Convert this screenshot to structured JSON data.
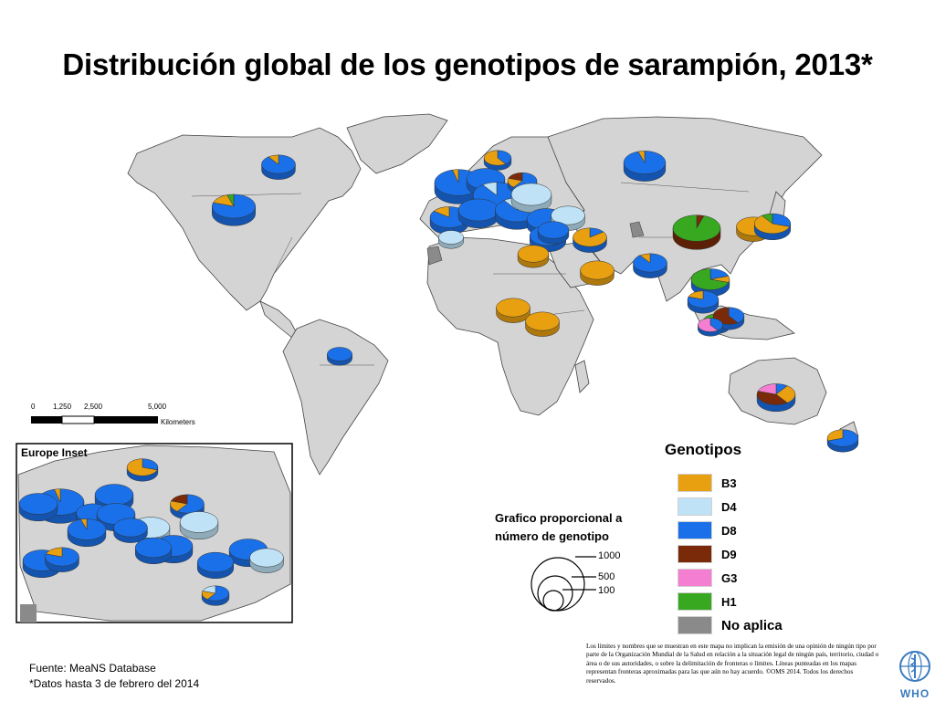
{
  "title": "Distribución global de los genotipos de sarampión, 2013*",
  "colors": {
    "B3": "#e8a010",
    "D4": "#bfe2f7",
    "D8": "#1a70e8",
    "D9": "#7a2a08",
    "G3": "#f47fd2",
    "H1": "#38a820",
    "NA": "#8a8a8a",
    "land": "#d4d4d4",
    "border": "#444444"
  },
  "legend": {
    "title": "Genotipos",
    "items": [
      {
        "key": "B3",
        "label": "B3"
      },
      {
        "key": "D4",
        "label": "D4"
      },
      {
        "key": "D8",
        "label": "D8"
      },
      {
        "key": "D9",
        "label": "D9"
      },
      {
        "key": "G3",
        "label": "G3"
      },
      {
        "key": "H1",
        "label": "H1"
      },
      {
        "key": "NA",
        "label": "No aplica"
      }
    ]
  },
  "proportional": {
    "title": "Grafico proporcional a número de genotipo",
    "values": [
      "1000",
      "500",
      "100"
    ]
  },
  "scale_bar": {
    "labels": [
      "0",
      "1,250",
      "2,500",
      "5,000"
    ],
    "unit": "Kilometers"
  },
  "inset": {
    "label": "Europe Inset"
  },
  "footer": {
    "source": "Fuente: MeaNS Database",
    "note": "*Datos hasta 3 de febrero del 2014"
  },
  "disclaimer": "Los límites y nombres que se muestran en este mapa no implican la emisión de una opinión de ningún tipo por parte de la Organización Mundial de la Salud en relación a la situación legal de ningún país, territorio, ciudad o área o de sus autoridades, o sobre la delimitación de fronteras o límites. Líneas punteadas en los mapas representan fronteras aproximadas para las que aún no hay acuerdo. ©OMS 2014. Todos los derechos reservados.",
  "logo": {
    "text": "WHO"
  },
  "pie_charts": [
    {
      "name": "canada",
      "total": 40,
      "shares": {
        "D8": 0.9,
        "B3": 0.1
      }
    },
    {
      "name": "usa",
      "total": 90,
      "shares": {
        "D8": 0.8,
        "B3": 0.15,
        "H1": 0.05
      }
    },
    {
      "name": "brazil",
      "total": 15,
      "shares": {
        "D8": 1.0
      }
    },
    {
      "name": "united-kingdom",
      "total": 900,
      "shares": {
        "D8": 0.96,
        "B3": 0.04
      }
    },
    {
      "name": "norway",
      "total": 20,
      "shares": {
        "B3": 0.6,
        "D8": 0.4
      }
    },
    {
      "name": "netherlands",
      "total": 60,
      "shares": {
        "D8": 1.0
      }
    },
    {
      "name": "germany",
      "total": 120,
      "shares": {
        "D8": 0.9,
        "D4": 0.1
      }
    },
    {
      "name": "poland",
      "total": 25,
      "shares": {
        "D8": 0.6,
        "D9": 0.2,
        "B3": 0.2
      }
    },
    {
      "name": "spain",
      "total": 60,
      "shares": {
        "D8": 0.85,
        "B3": 0.15
      }
    },
    {
      "name": "portugal-morocco",
      "total": 15,
      "shares": {
        "D4": 1.0
      }
    },
    {
      "name": "france",
      "total": 70,
      "shares": {
        "D8": 1.0
      }
    },
    {
      "name": "italy",
      "total": 90,
      "shares": {
        "D8": 0.9,
        "D4": 0.1
      }
    },
    {
      "name": "romania",
      "total": 70,
      "shares": {
        "D4": 1.0
      }
    },
    {
      "name": "turkey",
      "total": 60,
      "shares": {
        "D8": 1.0
      }
    },
    {
      "name": "georgia",
      "total": 40,
      "shares": {
        "D4": 1.0
      }
    },
    {
      "name": "egypt",
      "total": 50,
      "shares": {
        "D8": 1.0
      }
    },
    {
      "name": "sudan",
      "total": 30,
      "shares": {
        "B3": 1.0
      }
    },
    {
      "name": "iran",
      "total": 40,
      "shares": {
        "B3": 0.85,
        "D8": 0.15
      }
    },
    {
      "name": "saudi-arabia",
      "total": 30,
      "shares": {
        "D8": 1.0
      }
    },
    {
      "name": "yemen-oman",
      "total": 40,
      "shares": {
        "B3": 1.0
      }
    },
    {
      "name": "nigeria",
      "total": 40,
      "shares": {
        "B3": 1.0
      }
    },
    {
      "name": "central-africa",
      "total": 40,
      "shares": {
        "B3": 1.0
      }
    },
    {
      "name": "russia",
      "total": 80,
      "shares": {
        "D8": 0.95,
        "B3": 0.05
      }
    },
    {
      "name": "india",
      "total": 40,
      "shares": {
        "D8": 0.9,
        "B3": 0.1
      }
    },
    {
      "name": "china",
      "total": 150,
      "shares": {
        "H1": 0.95,
        "D9": 0.05
      }
    },
    {
      "name": "korea",
      "total": 40,
      "shares": {
        "B3": 1.0
      }
    },
    {
      "name": "japan",
      "total": 50,
      "shares": {
        "B3": 0.6,
        "D8": 0.3,
        "H1": 0.1
      }
    },
    {
      "name": "vietnam-laos",
      "total": 60,
      "shares": {
        "H1": 0.7,
        "D8": 0.2,
        "B3": 0.1
      }
    },
    {
      "name": "thailand",
      "total": 30,
      "shares": {
        "D8": 0.8,
        "B3": 0.2
      }
    },
    {
      "name": "malaysia",
      "total": 20,
      "shares": {
        "D8": 0.5,
        "G3": 0.3,
        "H1": 0.2
      }
    },
    {
      "name": "indonesia",
      "total": 30,
      "shares": {
        "D9": 0.6,
        "D8": 0.4
      }
    },
    {
      "name": "singapore",
      "total": 15,
      "shares": {
        "G3": 0.6,
        "D8": 0.4
      }
    },
    {
      "name": "australia",
      "total": 60,
      "shares": {
        "D9": 0.4,
        "B3": 0.3,
        "G3": 0.2,
        "D8": 0.1
      }
    },
    {
      "name": "new-zealand",
      "total": 30,
      "shares": {
        "D8": 0.7,
        "B3": 0.3
      }
    },
    {
      "name": "inset-norway",
      "total": 30,
      "shares": {
        "B3": 0.7,
        "D8": 0.3
      }
    },
    {
      "name": "inset-uk",
      "total": 900,
      "shares": {
        "D8": 0.96,
        "B3": 0.04
      }
    },
    {
      "name": "inset-netherlands",
      "total": 60,
      "shares": {
        "D8": 1.0
      }
    },
    {
      "name": "inset-germany",
      "total": 60,
      "shares": {
        "D8": 1.0
      }
    },
    {
      "name": "inset-poland",
      "total": 40,
      "shares": {
        "D8": 0.6,
        "D9": 0.2,
        "B3": 0.2
      }
    },
    {
      "name": "inset-belgium",
      "total": 40,
      "shares": {
        "D8": 1.0
      }
    },
    {
      "name": "inset-france-n",
      "total": 60,
      "shares": {
        "D8": 1.0
      }
    },
    {
      "name": "inset-czech",
      "total": 60,
      "shares": {
        "D4": 1.0
      }
    },
    {
      "name": "inset-romania",
      "total": 60,
      "shares": {
        "D4": 1.0
      }
    },
    {
      "name": "inset-france-s",
      "total": 60,
      "shares": {
        "D8": 0.95,
        "B3": 0.05
      }
    },
    {
      "name": "inset-austria",
      "total": 40,
      "shares": {
        "D8": 1.0
      }
    },
    {
      "name": "inset-italy",
      "total": 60,
      "shares": {
        "D8": 1.0
      }
    },
    {
      "name": "inset-croatia",
      "total": 50,
      "shares": {
        "D8": 1.0
      }
    },
    {
      "name": "inset-spain",
      "total": 60,
      "shares": {
        "D8": 1.0
      }
    },
    {
      "name": "inset-spain-e",
      "total": 40,
      "shares": {
        "D8": 0.8,
        "B3": 0.2
      }
    },
    {
      "name": "inset-turkey",
      "total": 60,
      "shares": {
        "D8": 1.0
      }
    },
    {
      "name": "inset-greece",
      "total": 40,
      "shares": {
        "D4": 1.0
      }
    },
    {
      "name": "inset-south-italy",
      "total": 50,
      "shares": {
        "D8": 1.0
      }
    },
    {
      "name": "inset-malta",
      "total": 20,
      "shares": {
        "D8": 0.6,
        "B3": 0.2,
        "D4": 0.2
      }
    }
  ]
}
